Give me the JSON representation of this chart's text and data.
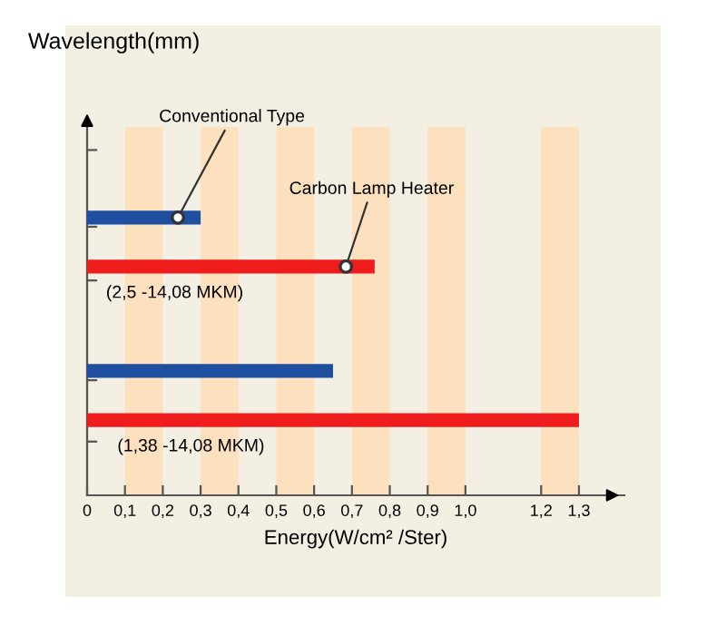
{
  "chart_data": {
    "type": "bar",
    "orientation": "horizontal",
    "xlabel": "Energy(W/cm² /Ster)",
    "ylabel": "Wavelength(mm)",
    "categories": [
      null,
      null
    ],
    "series": [
      {
        "name": "Conventional Type",
        "color": "#1f4fa0",
        "values": [
          0.3,
          0.65
        ]
      },
      {
        "name": "Carbon Lamp Heater",
        "color": "#ee1c1c",
        "values": [
          0.76,
          1.3
        ]
      }
    ],
    "xlim": [
      0,
      1.42
    ],
    "xticks": [
      0,
      {
        "value": 0.1,
        "label": "0,1"
      },
      {
        "value": 0.2,
        "label": "0,2"
      },
      {
        "value": 0.3,
        "label": "0,3"
      },
      {
        "value": 0.4,
        "label": "0,4"
      },
      {
        "value": 0.5,
        "label": "0,5"
      },
      {
        "value": 0.6,
        "label": "0,6"
      },
      {
        "value": 0.7,
        "label": "0,7"
      },
      {
        "value": 0.8,
        "label": "0,8"
      },
      {
        "value": 0.9,
        "label": "0,9"
      },
      {
        "value": 1.0,
        "label": "1,0"
      },
      {
        "value": 1.2,
        "label": "1,2"
      },
      {
        "value": 1.3,
        "label": "1,3"
      }
    ],
    "bands": [
      {
        "axis": "x",
        "from": 0.1,
        "to": 0.2,
        "color": "#fde0bd"
      },
      {
        "axis": "x",
        "from": 0.3,
        "to": 0.4,
        "color": "#fde0bd"
      },
      {
        "axis": "x",
        "from": 0.5,
        "to": 0.6,
        "color": "#fde0bd"
      },
      {
        "axis": "x",
        "from": 0.7,
        "to": 0.8,
        "color": "#fde0bd"
      },
      {
        "axis": "x",
        "from": 0.9,
        "to": 1.0,
        "color": "#fde0bd"
      },
      {
        "axis": "x",
        "from": 1.2,
        "to": 1.3,
        "color": "#fde0bd"
      }
    ],
    "annotations": [
      "(2,5 -14,08 MKM)",
      "(1,38 -14,08 MKM)"
    ]
  }
}
